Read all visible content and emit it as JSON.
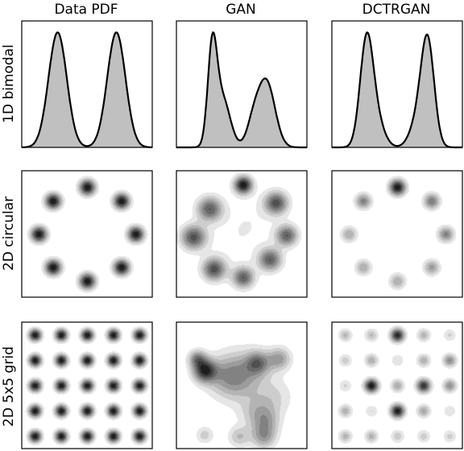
{
  "chart_data": {
    "type": "density_grid",
    "column_titles": [
      "Data PDF",
      "GAN",
      "DCTRGAN"
    ],
    "row_labels": [
      "1D bimodal",
      "2D circular",
      "2D 5x5 grid"
    ],
    "colors": {
      "fill": "#c0c0c0",
      "line": "#000000",
      "frame": "#000000"
    },
    "panels": [
      {
        "kind": "1d",
        "x": [
          -1.0,
          1.0
        ],
        "peaks": [
          {
            "mu": -0.45,
            "sigma": 0.14,
            "amp": 1.0
          },
          {
            "mu": 0.45,
            "sigma": 0.14,
            "amp": 1.0
          }
        ],
        "ylim": [
          0,
          1.1
        ]
      },
      {
        "kind": "1d",
        "x": [
          -1.0,
          1.0
        ],
        "peaks": [
          {
            "mu": -0.45,
            "sigma": 0.07,
            "amp": 1.0
          },
          {
            "mu": -0.3,
            "sigma": 0.12,
            "amp": 0.55
          },
          {
            "mu": 0.38,
            "sigma": 0.13,
            "amp": 0.72
          },
          {
            "mu": 0.18,
            "sigma": 0.1,
            "amp": 0.25
          }
        ],
        "ylim": [
          0,
          1.1
        ]
      },
      {
        "kind": "1d",
        "x": [
          -1.0,
          1.0
        ],
        "peaks": [
          {
            "mu": -0.47,
            "sigma": 0.1,
            "amp": 1.0
          },
          {
            "mu": 0.47,
            "sigma": 0.1,
            "amp": 0.98
          },
          {
            "mu": -0.32,
            "sigma": 0.12,
            "amp": 0.25
          },
          {
            "mu": 0.32,
            "sigma": 0.12,
            "amp": 0.25
          }
        ],
        "ylim": [
          0,
          1.1
        ]
      },
      {
        "kind": "2d",
        "blobs": [
          {
            "x": 0.0,
            "y": 0.78,
            "sigma": 0.09,
            "amp": 1.0
          },
          {
            "x": 0.55,
            "y": 0.55,
            "sigma": 0.09,
            "amp": 1.0
          },
          {
            "x": 0.78,
            "y": 0.0,
            "sigma": 0.09,
            "amp": 1.0
          },
          {
            "x": 0.55,
            "y": -0.55,
            "sigma": 0.09,
            "amp": 1.0
          },
          {
            "x": 0.0,
            "y": -0.78,
            "sigma": 0.09,
            "amp": 1.0
          },
          {
            "x": -0.55,
            "y": -0.55,
            "sigma": 0.09,
            "amp": 1.0
          },
          {
            "x": -0.78,
            "y": 0.0,
            "sigma": 0.09,
            "amp": 1.0
          },
          {
            "x": -0.55,
            "y": 0.55,
            "sigma": 0.09,
            "amp": 1.0
          }
        ]
      },
      {
        "kind": "2d",
        "blobs": [
          {
            "x": 0.02,
            "y": 0.82,
            "sigma": 0.1,
            "amp": 1.0
          },
          {
            "x": 0.55,
            "y": 0.52,
            "sigma": 0.13,
            "amp": 0.75
          },
          {
            "x": 0.72,
            "y": -0.02,
            "sigma": 0.12,
            "amp": 0.7
          },
          {
            "x": 0.45,
            "y": -0.42,
            "sigma": 0.13,
            "amp": 0.7
          },
          {
            "x": 0.02,
            "y": -0.72,
            "sigma": 0.12,
            "amp": 0.7
          },
          {
            "x": -0.45,
            "y": -0.58,
            "sigma": 0.13,
            "amp": 0.75
          },
          {
            "x": -0.78,
            "y": -0.05,
            "sigma": 0.14,
            "amp": 0.75
          },
          {
            "x": -0.52,
            "y": 0.42,
            "sigma": 0.14,
            "amp": 0.7
          },
          {
            "x": 0.15,
            "y": 0.25,
            "sigma": 0.35,
            "amp": 0.08
          },
          {
            "x": -0.15,
            "y": -0.2,
            "sigma": 0.35,
            "amp": 0.06
          }
        ]
      },
      {
        "kind": "2d",
        "blobs": [
          {
            "x": 0.0,
            "y": 0.78,
            "sigma": 0.09,
            "amp": 1.0
          },
          {
            "x": 0.55,
            "y": 0.55,
            "sigma": 0.09,
            "amp": 0.6
          },
          {
            "x": 0.78,
            "y": 0.0,
            "sigma": 0.09,
            "amp": 0.55
          },
          {
            "x": 0.55,
            "y": -0.55,
            "sigma": 0.09,
            "amp": 0.45
          },
          {
            "x": 0.0,
            "y": -0.78,
            "sigma": 0.09,
            "amp": 0.4
          },
          {
            "x": -0.55,
            "y": -0.55,
            "sigma": 0.09,
            "amp": 0.4
          },
          {
            "x": -0.78,
            "y": 0.0,
            "sigma": 0.09,
            "amp": 0.4
          },
          {
            "x": -0.55,
            "y": 0.55,
            "sigma": 0.09,
            "amp": 0.55
          }
        ]
      },
      {
        "kind": "2d",
        "grid_blobs": {
          "n": 5,
          "spacing": 0.42,
          "sigma": 0.07,
          "amp": 1.0
        }
      },
      {
        "kind": "2d",
        "blobs": [
          {
            "x": -0.6,
            "y": 0.25,
            "sigma": 0.13,
            "amp": 1.0
          },
          {
            "x": -0.72,
            "y": 0.45,
            "sigma": 0.1,
            "amp": 0.6
          },
          {
            "x": -0.2,
            "y": 0.15,
            "sigma": 0.25,
            "amp": 0.5
          },
          {
            "x": 0.25,
            "y": 0.38,
            "sigma": 0.13,
            "amp": 0.6
          },
          {
            "x": 0.6,
            "y": 0.45,
            "sigma": 0.13,
            "amp": 0.5
          },
          {
            "x": 0.1,
            "y": 0.2,
            "sigma": 0.3,
            "amp": 0.3
          },
          {
            "x": 0.25,
            "y": -0.45,
            "sigma": 0.2,
            "amp": 0.35
          },
          {
            "x": 0.4,
            "y": -0.6,
            "sigma": 0.15,
            "amp": 0.3
          },
          {
            "x": 0.35,
            "y": -0.85,
            "sigma": 0.14,
            "amp": 0.5
          },
          {
            "x": -0.05,
            "y": -0.85,
            "sigma": 0.12,
            "amp": 0.35
          },
          {
            "x": -0.6,
            "y": -0.82,
            "sigma": 0.1,
            "amp": 0.3
          },
          {
            "x": 0.55,
            "y": -0.2,
            "sigma": 0.2,
            "amp": 0.2
          }
        ]
      },
      {
        "kind": "2d",
        "grid_blobs": {
          "n": 5,
          "spacing": 0.42,
          "sigma": 0.075,
          "amp": 0.6,
          "jitter": true
        },
        "extra_blobs": [
          {
            "x": 0.0,
            "y": 0.84,
            "sigma": 0.08,
            "amp": 0.9
          },
          {
            "x": 0.42,
            "y": 0.0,
            "sigma": 0.08,
            "amp": 1.0
          },
          {
            "x": 0.0,
            "y": -0.42,
            "sigma": 0.08,
            "amp": 0.85
          },
          {
            "x": -0.42,
            "y": 0.0,
            "sigma": 0.08,
            "amp": 0.8
          }
        ]
      }
    ]
  }
}
